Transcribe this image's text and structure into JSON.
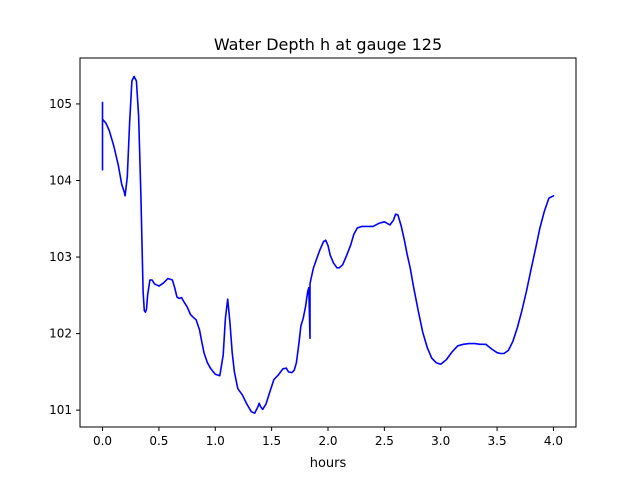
{
  "chart_data": {
    "type": "line",
    "title": "Water Depth h at gauge 125",
    "xlabel": "hours",
    "ylabel": "",
    "xlim": [
      -0.2,
      4.2
    ],
    "ylim": [
      100.78,
      105.6
    ],
    "xticks": [
      0.0,
      0.5,
      1.0,
      1.5,
      2.0,
      2.5,
      3.0,
      3.5,
      4.0
    ],
    "xtick_labels": [
      "0.0",
      "0.5",
      "1.0",
      "1.5",
      "2.0",
      "2.5",
      "3.0",
      "3.5",
      "4.0"
    ],
    "yticks": [
      101,
      102,
      103,
      104,
      105
    ],
    "ytick_labels": [
      "101",
      "102",
      "103",
      "104",
      "105"
    ],
    "grid": false,
    "series": [
      {
        "color": "#0000ff",
        "x": [
          0.0,
          0.0,
          0.0,
          0.0,
          0.03,
          0.06,
          0.1,
          0.14,
          0.17,
          0.19,
          0.2,
          0.22,
          0.24,
          0.26,
          0.28,
          0.3,
          0.32,
          0.34,
          0.36,
          0.37,
          0.38,
          0.39,
          0.4,
          0.42,
          0.44,
          0.46,
          0.5,
          0.54,
          0.58,
          0.62,
          0.64,
          0.66,
          0.68,
          0.7,
          0.72,
          0.75,
          0.78,
          0.8,
          0.83,
          0.86,
          0.88,
          0.9,
          0.93,
          0.96,
          1.0,
          1.04,
          1.07,
          1.09,
          1.11,
          1.13,
          1.15,
          1.17,
          1.2,
          1.24,
          1.28,
          1.32,
          1.35,
          1.38,
          1.39,
          1.4,
          1.42,
          1.45,
          1.48,
          1.52,
          1.56,
          1.6,
          1.63,
          1.65,
          1.68,
          1.7,
          1.72,
          1.74,
          1.76,
          1.78,
          1.8,
          1.82,
          1.83,
          1.84,
          1.84,
          1.84,
          1.85,
          1.87,
          1.9,
          1.93,
          1.96,
          1.98,
          2.0,
          2.02,
          2.05,
          2.08,
          2.1,
          2.13,
          2.16,
          2.2,
          2.23,
          2.26,
          2.3,
          2.35,
          2.4,
          2.45,
          2.5,
          2.55,
          2.58,
          2.6,
          2.62,
          2.65,
          2.68,
          2.7,
          2.73,
          2.76,
          2.8,
          2.84,
          2.88,
          2.92,
          2.96,
          3.0,
          3.05,
          3.1,
          3.15,
          3.2,
          3.25,
          3.3,
          3.35,
          3.4,
          3.45,
          3.5,
          3.53,
          3.56,
          3.6,
          3.64,
          3.68,
          3.72,
          3.76,
          3.8,
          3.84,
          3.88,
          3.92,
          3.96,
          4.0
        ],
        "y": [
          104.14,
          105.02,
          104.8,
          104.8,
          104.75,
          104.65,
          104.45,
          104.2,
          103.95,
          103.86,
          103.8,
          104.05,
          104.75,
          105.3,
          105.36,
          105.3,
          104.85,
          103.8,
          102.55,
          102.3,
          102.28,
          102.32,
          102.5,
          102.7,
          102.7,
          102.65,
          102.62,
          102.66,
          102.72,
          102.7,
          102.6,
          102.48,
          102.46,
          102.47,
          102.42,
          102.35,
          102.25,
          102.22,
          102.18,
          102.05,
          101.9,
          101.75,
          101.62,
          101.54,
          101.47,
          101.45,
          101.72,
          102.2,
          102.45,
          102.15,
          101.75,
          101.5,
          101.28,
          101.2,
          101.08,
          100.98,
          100.96,
          101.05,
          101.09,
          101.05,
          101.01,
          101.08,
          101.22,
          101.4,
          101.46,
          101.54,
          101.55,
          101.5,
          101.49,
          101.52,
          101.62,
          101.85,
          102.1,
          102.2,
          102.35,
          102.55,
          102.6,
          101.94,
          101.94,
          102.65,
          102.72,
          102.85,
          102.98,
          103.1,
          103.2,
          103.22,
          103.15,
          103.02,
          102.92,
          102.86,
          102.86,
          102.9,
          103.0,
          103.15,
          103.3,
          103.38,
          103.4,
          103.4,
          103.4,
          103.44,
          103.46,
          103.42,
          103.48,
          103.56,
          103.55,
          103.4,
          103.2,
          103.05,
          102.85,
          102.6,
          102.3,
          102.02,
          101.82,
          101.68,
          101.62,
          101.6,
          101.66,
          101.76,
          101.84,
          101.86,
          101.87,
          101.87,
          101.86,
          101.86,
          101.8,
          101.75,
          101.74,
          101.74,
          101.78,
          101.9,
          102.08,
          102.3,
          102.55,
          102.83,
          103.1,
          103.38,
          103.6,
          103.77,
          103.8
        ]
      }
    ]
  }
}
